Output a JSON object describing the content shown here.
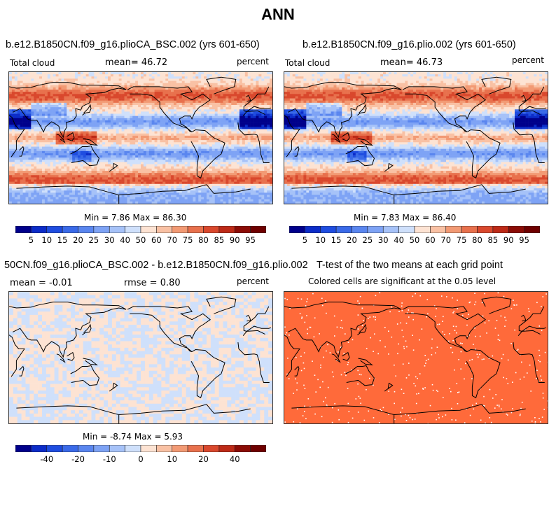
{
  "title": "ANN",
  "panels": {
    "p1": {
      "title": "b.e12.B1850CN.f09_g16.plioCA_BSC.002 (yrs 601-650)",
      "left_label": "Total cloud",
      "mean_text": "mean=  46.72",
      "units": "percent",
      "minmax": "Min =   7.86 Max =  86.30"
    },
    "p2": {
      "title": "b.e12.B1850CN.f09_g16.plio.002 (yrs 601-650)",
      "left_label": "Total cloud",
      "mean_text": "mean=  46.73",
      "units": "percent",
      "minmax": "Min =   7.83 Max =  86.40"
    },
    "p3": {
      "title": "50CN.f09_g16.plioCA_BSC.002 - b.e12.B1850CN.f09_g16.plio.002",
      "mean_text": "mean =  -0.01",
      "rmse_text": "rmse =   0.80",
      "units": "percent",
      "minmax": "Min =  -8.74 Max =   5.93"
    },
    "p4": {
      "title": "T-test of the two means at each grid point",
      "subtitle": "Colored cells are significant at the 0.05 level"
    }
  },
  "colors": {
    "abs_palette": [
      "#00008b",
      "#0c2cc8",
      "#1f4de0",
      "#3a6ae8",
      "#5a86ef",
      "#7ea3f5",
      "#a6c2f8",
      "#cfe0fb",
      "#fde3d3",
      "#f9c1a4",
      "#f29a74",
      "#e8714d",
      "#d9482d",
      "#bd2a17",
      "#8b0c06",
      "#6e0000"
    ],
    "diff_palette": [
      "#00008b",
      "#0c2cc8",
      "#1f4de0",
      "#3a6ae8",
      "#5a86ef",
      "#7ea3f5",
      "#a6c2f8",
      "#cfe0fb",
      "#fde3d3",
      "#f9c1a4",
      "#f29a74",
      "#e8714d",
      "#d9482d",
      "#bd2a17",
      "#8b0c06",
      "#6e0000"
    ],
    "ttest_fill": "#ff6a3a"
  },
  "chart_data": [
    {
      "type": "heatmap",
      "panel": "p1",
      "variable": "Total cloud",
      "units": "percent",
      "mean": 46.72,
      "min": 7.86,
      "max": 86.3,
      "colorbar_levels": [
        5,
        10,
        15,
        20,
        25,
        30,
        40,
        50,
        60,
        70,
        75,
        80,
        85,
        90,
        95
      ],
      "colorbar_labels": [
        "5",
        "10",
        "15",
        "20",
        "25",
        "30",
        "40",
        "50",
        "60",
        "70",
        "75",
        "80",
        "85",
        "90",
        "95"
      ]
    },
    {
      "type": "heatmap",
      "panel": "p2",
      "variable": "Total cloud",
      "units": "percent",
      "mean": 46.73,
      "min": 7.83,
      "max": 86.4,
      "colorbar_levels": [
        5,
        10,
        15,
        20,
        25,
        30,
        40,
        50,
        60,
        70,
        75,
        80,
        85,
        90,
        95
      ],
      "colorbar_labels": [
        "5",
        "10",
        "15",
        "20",
        "25",
        "30",
        "40",
        "50",
        "60",
        "70",
        "75",
        "80",
        "85",
        "90",
        "95"
      ]
    },
    {
      "type": "heatmap",
      "panel": "p3",
      "variable": "difference",
      "units": "percent",
      "mean": -0.01,
      "rmse": 0.8,
      "min": -8.74,
      "max": 5.93,
      "colorbar_labels": [
        "-40",
        "-20",
        "-10",
        "0",
        "10",
        "20",
        "40"
      ]
    },
    {
      "type": "heatmap",
      "panel": "p4",
      "variable": "significance",
      "significance_level": 0.05
    }
  ]
}
